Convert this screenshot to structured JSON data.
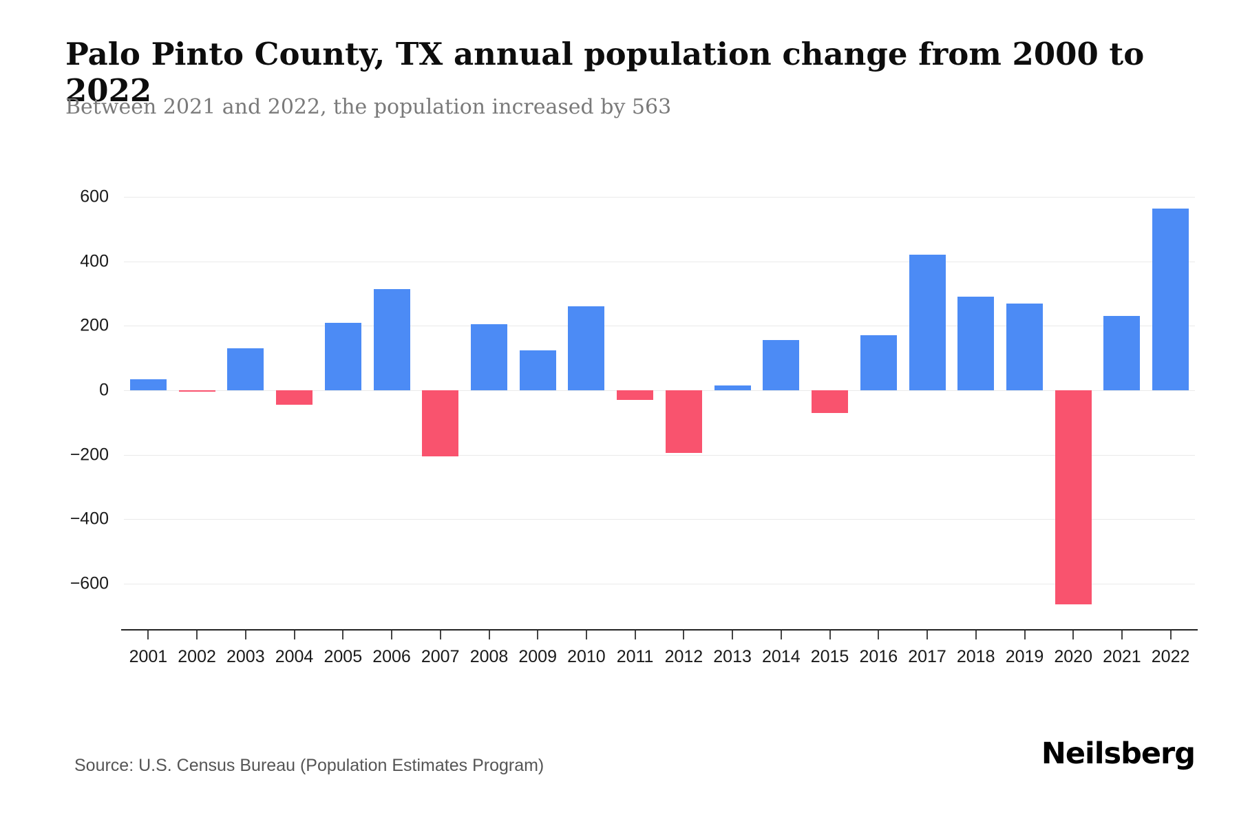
{
  "header": {
    "title": "Palo Pinto County, TX annual population change from 2000 to 2022",
    "subtitle": "Between 2021 and 2022, the population increased by 563"
  },
  "chart_data": {
    "type": "bar",
    "title": "Palo Pinto County, TX annual population change from 2000 to 2022",
    "subtitle": "Between 2021 and 2022, the population increased by 563",
    "categories": [
      "2001",
      "2002",
      "2003",
      "2004",
      "2005",
      "2006",
      "2007",
      "2008",
      "2009",
      "2010",
      "2011",
      "2012",
      "2013",
      "2014",
      "2015",
      "2016",
      "2017",
      "2018",
      "2019",
      "2020",
      "2021",
      "2022"
    ],
    "values": [
      35,
      -3,
      130,
      -45,
      210,
      315,
      -205,
      205,
      125,
      260,
      -30,
      -195,
      15,
      155,
      -70,
      170,
      420,
      290,
      270,
      -665,
      230,
      563
    ],
    "xlabel": "",
    "ylabel": "",
    "y_ticks": [
      -600,
      -400,
      -200,
      0,
      200,
      400,
      600
    ],
    "ylim": [
      -700,
      640
    ],
    "grid": true,
    "legend": "none",
    "positive_color": "#4C8BF5",
    "negative_color": "#F9536E"
  },
  "footer": {
    "source": "Source: U.S. Census Bureau (Population Estimates Program)",
    "brand": "Neilsberg"
  }
}
